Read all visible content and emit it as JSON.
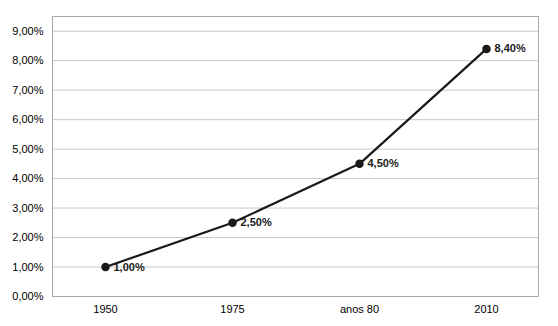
{
  "chart_data": {
    "type": "line",
    "categories": [
      "1950",
      "1975",
      "anos 80",
      "2010"
    ],
    "values": [
      1.0,
      2.5,
      4.5,
      8.4
    ],
    "value_labels": [
      "1,00%",
      "2,50%",
      "4,50%",
      "8,40%"
    ],
    "data_labels": true,
    "color": "#1a1a1a",
    "marker": "circle",
    "ylim": [
      0,
      9.5
    ],
    "yticks": [
      {
        "value": 0,
        "label": "0,00%"
      },
      {
        "value": 1,
        "label": "1,00%"
      },
      {
        "value": 2,
        "label": "2,00%"
      },
      {
        "value": 3,
        "label": "3,00%"
      },
      {
        "value": 4,
        "label": "4,00%"
      },
      {
        "value": 5,
        "label": "5,00%"
      },
      {
        "value": 6,
        "label": "6,00%"
      },
      {
        "value": 7,
        "label": "7,00%"
      },
      {
        "value": 8,
        "label": "8,00%"
      },
      {
        "value": 9,
        "label": "9,00%"
      }
    ],
    "grid": true
  }
}
